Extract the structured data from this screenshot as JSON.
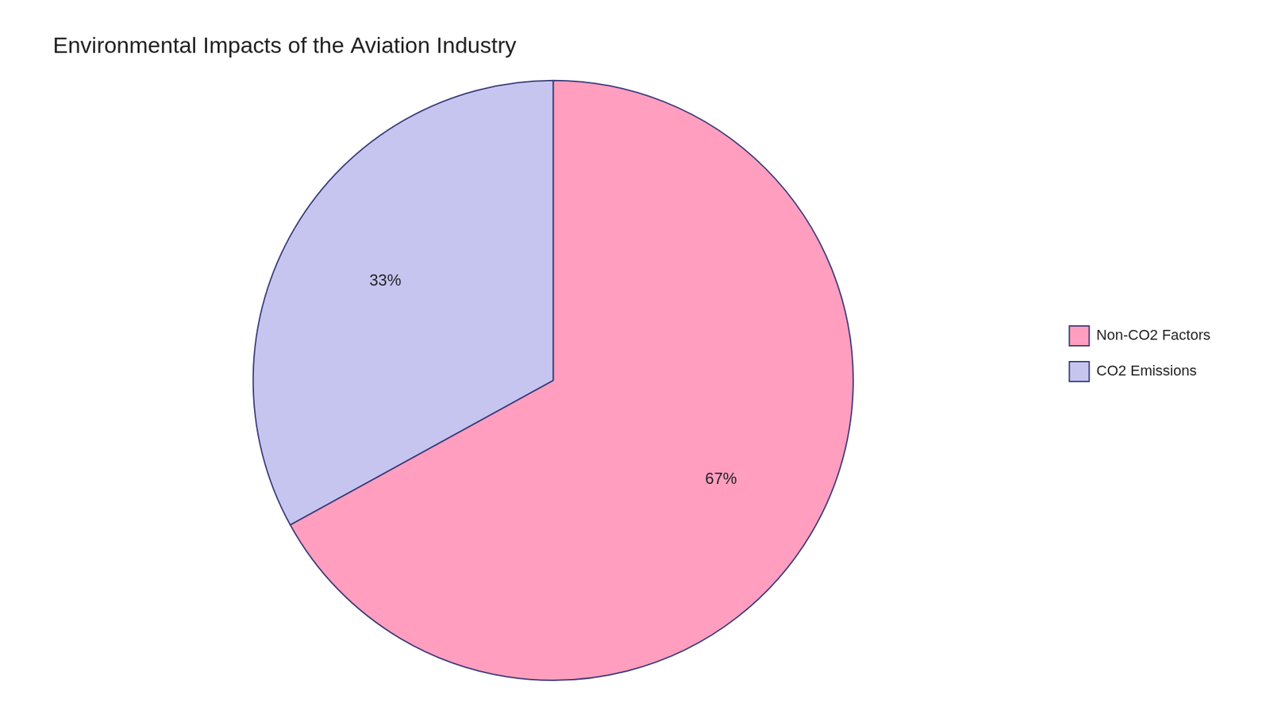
{
  "chart_data": {
    "type": "pie",
    "title": "Environmental Impacts of the Aviation Industry",
    "categories": [
      "Non-CO2 Factors",
      "CO2 Emissions"
    ],
    "values": [
      67,
      33
    ],
    "value_labels": [
      "67%",
      "33%"
    ],
    "colors": [
      "#FF9EBF",
      "#C5C5F0"
    ],
    "data_labels": true,
    "legend": "right"
  }
}
